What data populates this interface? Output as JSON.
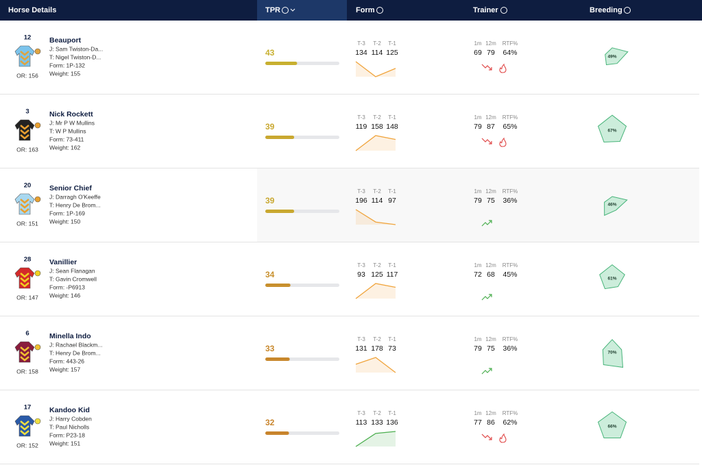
{
  "header": {
    "columns": [
      "Horse Details",
      "TPR",
      "Form",
      "Trainer",
      "Breeding"
    ]
  },
  "form_labels": [
    "T-3",
    "T-2",
    "T-1"
  ],
  "trainer_labels": [
    "1m",
    "12m",
    "RTF%"
  ],
  "rows": [
    {
      "number": 12,
      "name": "Beauport",
      "jockey": "J: Sam Twiston-Da...",
      "trainer": "T: Nigel Twiston-D...",
      "form": "Form: 1P-132",
      "weight": "Weight: 155",
      "or": "OR: 156",
      "tpr": 43,
      "tpr_color": "#c8b030",
      "form_values": [
        134,
        114,
        125
      ],
      "form_color": "#f0a43c",
      "trainer_stats": [
        69,
        79,
        "64%"
      ],
      "trend": "down",
      "hot": true,
      "breeding": "49%",
      "silk_colors": [
        "#7cc4ec",
        "#e0a440"
      ]
    },
    {
      "number": 3,
      "name": "Nick Rockett",
      "jockey": "J: Mr P W Mullins",
      "trainer": "T: W P Mullins",
      "form": "Form: 73-411",
      "weight": "Weight: 162",
      "or": "OR: 163",
      "tpr": 39,
      "tpr_color": "#c9a830",
      "form_values": [
        119,
        158,
        148
      ],
      "form_color": "#f0a43c",
      "trainer_stats": [
        79,
        87,
        "65%"
      ],
      "trend": "down",
      "hot": true,
      "breeding": "67%",
      "silk_colors": [
        "#222222",
        "#e8a030"
      ]
    },
    {
      "number": 20,
      "name": "Senior Chief",
      "jockey": "J: Darragh O'Keeffe",
      "trainer": "T: Henry De Brom...",
      "form": "Form: 1P-169",
      "weight": "Weight: 150",
      "or": "OR: 151",
      "tpr": 39,
      "tpr_color": "#c9a830",
      "form_values": [
        196,
        114,
        97
      ],
      "form_color": "#f0a43c",
      "trainer_stats": [
        79,
        75,
        "36%"
      ],
      "trend": "up",
      "hot": false,
      "breeding": "46%",
      "silk_colors": [
        "#a8d8f0",
        "#e8a030"
      ]
    },
    {
      "number": 28,
      "name": "Vanillier",
      "jockey": "J: Sean Flanagan",
      "trainer": "T: Gavin Cromwell",
      "form": "Form: -P6913",
      "weight": "Weight: 146",
      "or": "OR: 147",
      "tpr": 34,
      "tpr_color": "#c8902e",
      "form_values": [
        93,
        125,
        117
      ],
      "form_color": "#f0a43c",
      "trainer_stats": [
        72,
        68,
        "45%"
      ],
      "trend": "up",
      "hot": false,
      "breeding": "61%",
      "silk_colors": [
        "#d42a2a",
        "#f0d020"
      ]
    },
    {
      "number": 6,
      "name": "Minella Indo",
      "jockey": "J: Rachael Blackm...",
      "trainer": "T: Henry De Brom...",
      "form": "Form: 443-26",
      "weight": "Weight: 157",
      "or": "OR: 158",
      "tpr": 33,
      "tpr_color": "#c8882c",
      "form_values": [
        131,
        178,
        73
      ],
      "form_color": "#f0a43c",
      "trainer_stats": [
        79,
        75,
        "36%"
      ],
      "trend": "up",
      "hot": false,
      "breeding": "70%",
      "silk_colors": [
        "#8a1c3c",
        "#f0c030"
      ]
    },
    {
      "number": 17,
      "name": "Kandoo Kid",
      "jockey": "J: Harry Cobden",
      "trainer": "T: Paul Nicholls",
      "form": "Form: P23-18",
      "weight": "Weight: 151",
      "or": "OR: 152",
      "tpr": 32,
      "tpr_color": "#c8842c",
      "form_values": [
        113,
        133,
        136
      ],
      "form_color": "#4caf50",
      "trainer_stats": [
        77,
        86,
        "62%"
      ],
      "trend": "down",
      "hot": true,
      "breeding": "66%",
      "silk_colors": [
        "#2a5aa8",
        "#f0e040"
      ]
    }
  ]
}
